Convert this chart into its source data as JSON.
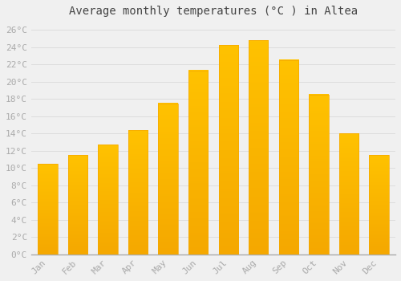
{
  "title": "Average monthly temperatures (°C ) in Altea",
  "months": [
    "Jan",
    "Feb",
    "Mar",
    "Apr",
    "May",
    "Jun",
    "Jul",
    "Aug",
    "Sep",
    "Oct",
    "Nov",
    "Dec"
  ],
  "values": [
    10.5,
    11.5,
    12.7,
    14.4,
    17.5,
    21.3,
    24.2,
    24.8,
    22.5,
    18.5,
    14.0,
    11.5
  ],
  "bar_color_top": "#FFC200",
  "bar_color_bottom": "#F5A800",
  "background_color": "#F0F0F0",
  "grid_color": "#DDDDDD",
  "ylim": [
    0,
    27
  ],
  "yticks": [
    0,
    2,
    4,
    6,
    8,
    10,
    12,
    14,
    16,
    18,
    20,
    22,
    24,
    26
  ],
  "title_fontsize": 10,
  "tick_fontsize": 8,
  "tick_color": "#AAAAAA",
  "bar_width": 0.65,
  "figsize": [
    5.0,
    3.5
  ],
  "dpi": 100
}
